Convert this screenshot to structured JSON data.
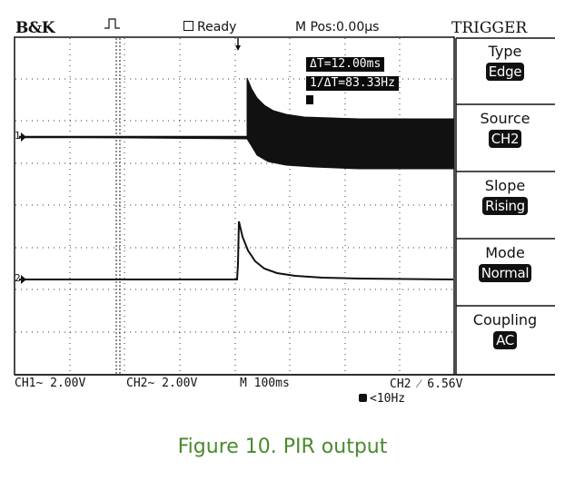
{
  "header": {
    "brand": "B&K",
    "status": "Ready",
    "mpos": "M Pos:0.00μs",
    "menu_title": "TRIGGER"
  },
  "trigger_menu": [
    {
      "label": "Type",
      "value": "Edge"
    },
    {
      "label": "Source",
      "value": "CH2"
    },
    {
      "label": "Slope",
      "value": "Rising"
    },
    {
      "label": "Mode",
      "value": "Normal"
    },
    {
      "label": "Coupling",
      "value": "AC"
    }
  ],
  "cursor_readout": {
    "delta_t": "ΔT=12.00ms",
    "inv_delta_t": "1/ΔT=83.33Hz"
  },
  "channel_markers": {
    "ch1": "1",
    "ch2": "2"
  },
  "footer": {
    "ch1_scale": "CH1~ 2.00V",
    "ch2_scale": "CH2~ 2.00V",
    "timebase": "M 100ms",
    "trigger_level": "CH2 ⁄ 6.56V",
    "freq": "<10Hz"
  },
  "caption": "Figure 10. PIR output",
  "colors": {
    "trace": "#111111",
    "caption": "#4a8a2e"
  }
}
